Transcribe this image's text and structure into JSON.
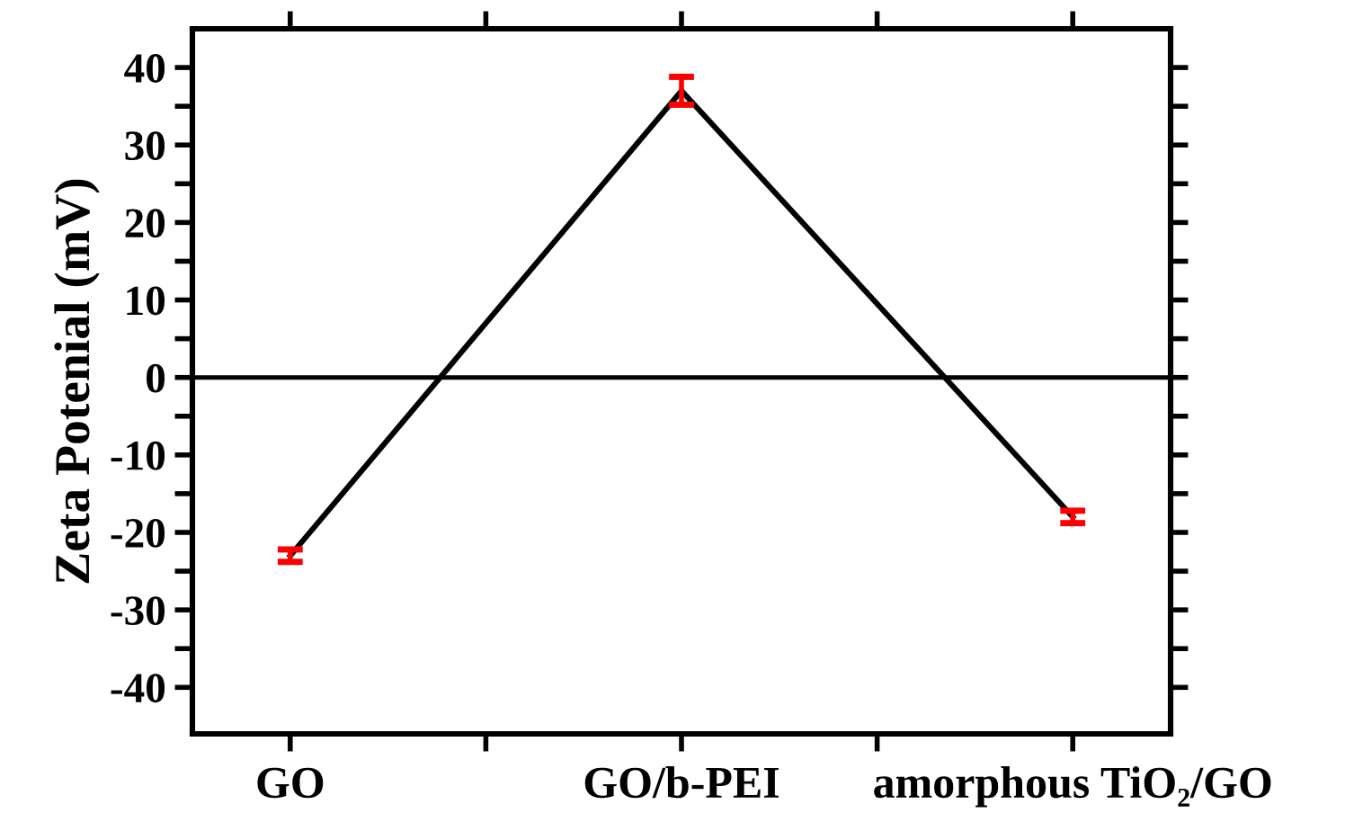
{
  "chart_data": {
    "type": "line",
    "ylabel": "Zeta Potenial (mV)",
    "categories": [
      "GO",
      "GO/b-PEI",
      "amorphous TiO₂/GO"
    ],
    "series": [
      {
        "color": "#000000",
        "values": [
          -23,
          37,
          -18
        ],
        "errors": [
          0.8,
          1.8,
          0.8
        ]
      }
    ],
    "ylim": [
      -46,
      45
    ],
    "yticks": [
      -40,
      {
        "value": -35,
        "label": null
      },
      -30,
      {
        "value": -25,
        "label": null
      },
      -20,
      {
        "value": -15,
        "label": null
      },
      -10,
      {
        "value": -5,
        "label": null
      },
      0,
      {
        "value": 5,
        "label": null
      },
      10,
      {
        "value": 15,
        "label": null
      },
      20,
      {
        "value": 25,
        "label": null
      },
      30,
      {
        "value": 35,
        "label": null
      },
      40
    ],
    "ref_lines": [
      {
        "axis": "y",
        "value": 0,
        "color": "#000000"
      }
    ],
    "grid": false,
    "legend": false,
    "marker": "none",
    "line_style": "solid"
  }
}
